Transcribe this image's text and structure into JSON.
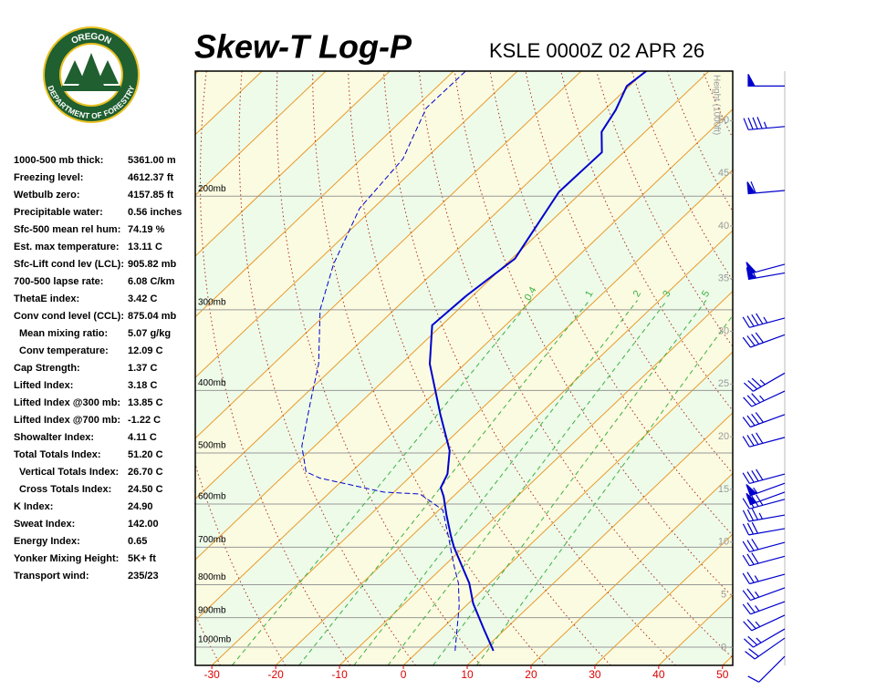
{
  "logo": {
    "top": "OREGON",
    "bottom": "DEPARTMENT OF FORESTRY"
  },
  "indices": [
    {
      "label": "1000-500 mb thick:",
      "value": "5361.00 m"
    },
    {
      "label": "Freezing level:",
      "value": "4612.37 ft"
    },
    {
      "label": "Wetbulb zero:",
      "value": "4157.85 ft"
    },
    {
      "label": "Precipitable water:",
      "value": "0.56 inches"
    },
    {
      "label": "Sfc-500 mean rel hum:",
      "value": "74.19 %"
    },
    {
      "label": "Est. max temperature:",
      "value": "13.11 C"
    },
    {
      "label": "Sfc-Lift cond lev (LCL):",
      "value": "905.82 mb"
    },
    {
      "label": "700-500 lapse rate:",
      "value": "6.08 C/km"
    },
    {
      "label": "ThetaE index:",
      "value": "3.42 C"
    },
    {
      "label": "Conv cond level (CCL):",
      "value": "875.04 mb"
    },
    {
      "label": "Mean mixing ratio:",
      "value": "5.07 g/kg"
    },
    {
      "label": "Conv temperature:",
      "value": "12.09 C"
    },
    {
      "label": "Cap Strength:",
      "value": "1.37 C"
    },
    {
      "label": "Lifted Index:",
      "value": "3.18 C"
    },
    {
      "label": "Lifted Index @300 mb:",
      "value": "13.85 C"
    },
    {
      "label": "Lifted Index @700 mb:",
      "value": "-1.22 C"
    },
    {
      "label": "Showalter Index:",
      "value": "4.11 C"
    },
    {
      "label": "Total Totals Index:",
      "value": "51.20 C"
    },
    {
      "label": "Vertical Totals Index:",
      "value": "26.70 C"
    },
    {
      "label": "Cross Totals Index:",
      "value": "24.50 C"
    },
    {
      "label": "K Index:",
      "value": "24.90"
    },
    {
      "label": "Sweat Index:",
      "value": "142.00"
    },
    {
      "label": "Energy Index:",
      "value": "0.65"
    },
    {
      "label": "Yonker Mixing Height:",
      "value": "5K+ ft"
    },
    {
      "label": "Transport wind:",
      "value": "235/23"
    }
  ],
  "chart_data": {
    "type": "skew-t",
    "title": "Skew-T Log-P",
    "subtitle": "KSLE 0000Z 02 APR 26",
    "xlim": [
      -32.6,
      51.6
    ],
    "xticks": [
      -30,
      -20,
      -10,
      0,
      10,
      20,
      30,
      40,
      50
    ],
    "ylim": [
      1067,
      128
    ],
    "yscale": "log",
    "yticks": [
      {
        "value": 1000,
        "label": "1000mb"
      },
      {
        "value": 900,
        "label": "900mb"
      },
      {
        "value": 800,
        "label": "800mb"
      },
      {
        "value": 700,
        "label": "700mb"
      },
      {
        "value": 600,
        "label": "600mb"
      },
      {
        "value": 500,
        "label": "500mb"
      },
      {
        "value": 400,
        "label": "400mb"
      },
      {
        "value": 300,
        "label": "300mb"
      },
      {
        "value": 200,
        "label": "200mb"
      }
    ],
    "y2_label": "Height (1000ft)",
    "y2lim": [
      -1.7,
      54.7
    ],
    "y2ticks": [
      0,
      5,
      10,
      15,
      20,
      25,
      30,
      35,
      40,
      45,
      50
    ],
    "mixing_ratios": [
      0.4,
      1,
      2,
      3,
      5,
      8
    ],
    "series": [
      {
        "color": "#0000cc",
        "dash": false,
        "pressure": [
          1013,
          937,
          855,
          796,
          746,
          699,
          672,
          624,
          584,
          566,
          539,
          496,
          436,
          364,
          317,
          285,
          250,
          197,
          171,
          159,
          147,
          135,
          128
        ],
        "values": [
          11.7,
          6.6,
          0.7,
          -3.2,
          -7.4,
          -11.6,
          -13.9,
          -18.0,
          -21.5,
          -23.4,
          -24.6,
          -28.1,
          -35.5,
          -45.5,
          -51.5,
          -51.0,
          -49.5,
          -53.6,
          -53.4,
          -56.8,
          -58.2,
          -60.4,
          -59.8
        ]
      },
      {
        "color": "#0000cc",
        "dash": true,
        "pressure": [
          1013,
          864,
          796,
          746,
          677,
          613,
          579,
          575,
          547,
          535,
          488,
          415,
          364,
          300,
          255,
          209,
          175,
          146,
          128
        ],
        "values": [
          5.7,
          -1.0,
          -4.9,
          -8.6,
          -13.9,
          -19.4,
          -25.6,
          -31.6,
          -43.9,
          -47.1,
          -52.0,
          -58.1,
          -62.9,
          -71.6,
          -77.0,
          -82.1,
          -83.5,
          -88.2,
          -88.1
        ]
      }
    ],
    "winds": {
      "color": "#0000cc",
      "pressure": [
        1033,
        968,
        937,
        892,
        850,
        809,
        771,
        723,
        688,
        655,
        624,
        590,
        575,
        557,
        539,
        473,
        436,
        401,
        376,
        328,
        309,
        263,
        255,
        196,
        156,
        135
      ],
      "direction": [
        225,
        235,
        240,
        245,
        250,
        250,
        255,
        255,
        255,
        260,
        260,
        255,
        250,
        250,
        255,
        255,
        250,
        245,
        240,
        250,
        255,
        260,
        255,
        265,
        265,
        270
      ],
      "speed": [
        10,
        20,
        25,
        25,
        25,
        25,
        25,
        30,
        30,
        30,
        35,
        40,
        50,
        55,
        40,
        40,
        40,
        35,
        35,
        40,
        45,
        55,
        50,
        60,
        45,
        50
      ]
    }
  }
}
